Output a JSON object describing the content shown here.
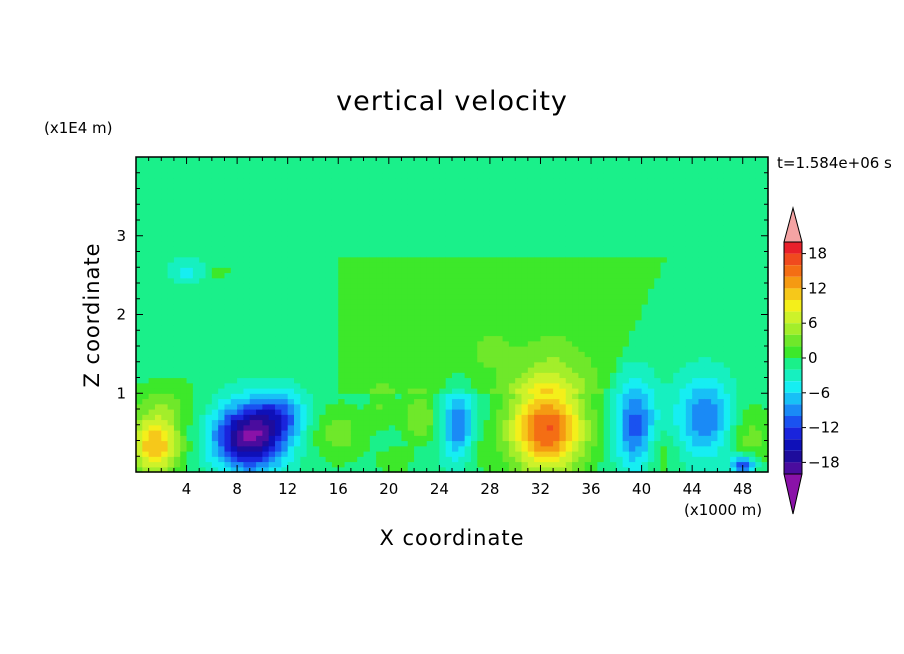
{
  "chart_data": {
    "type": "heatmap",
    "title": "vertical velocity",
    "xlabel": "X coordinate",
    "ylabel": "Z coordinate",
    "x_unit": "(x1000 m)",
    "y_unit": "(x1E4 m)",
    "time_label": "t=1.584e+06 s",
    "xlim": [
      0,
      50
    ],
    "ylim": [
      0,
      4
    ],
    "x_ticks": [
      "4",
      "8",
      "12",
      "16",
      "20",
      "24",
      "28",
      "32",
      "36",
      "40",
      "44",
      "48"
    ],
    "y_ticks": [
      "1",
      "2",
      "3"
    ],
    "colorbar": {
      "ticks": [
        "18",
        "12",
        "6",
        "0",
        "-6",
        "-12",
        "-18"
      ],
      "levels": [
        {
          "min": 20,
          "max": null,
          "color": "#f4a3a3"
        },
        {
          "min": 18,
          "max": 20,
          "color": "#e8202a"
        },
        {
          "min": 16,
          "max": 18,
          "color": "#f04a1e"
        },
        {
          "min": 14,
          "max": 16,
          "color": "#f46e14"
        },
        {
          "min": 12,
          "max": 14,
          "color": "#f59a12"
        },
        {
          "min": 10,
          "max": 12,
          "color": "#f6c81a"
        },
        {
          "min": 8,
          "max": 10,
          "color": "#f4ef1a"
        },
        {
          "min": 6,
          "max": 8,
          "color": "#cdf22a"
        },
        {
          "min": 4,
          "max": 6,
          "color": "#a3ee2a"
        },
        {
          "min": 2,
          "max": 4,
          "color": "#6fe82a"
        },
        {
          "min": 0,
          "max": 2,
          "color": "#3de82a"
        },
        {
          "min": -2,
          "max": 0,
          "color": "#1af08a"
        },
        {
          "min": -4,
          "max": -2,
          "color": "#16f0c0"
        },
        {
          "min": -6,
          "max": -4,
          "color": "#16eef2"
        },
        {
          "min": -8,
          "max": -6,
          "color": "#18c0f6"
        },
        {
          "min": -10,
          "max": -8,
          "color": "#1a8af6"
        },
        {
          "min": -12,
          "max": -10,
          "color": "#1a52f0"
        },
        {
          "min": -14,
          "max": -12,
          "color": "#1a24dc"
        },
        {
          "min": -16,
          "max": -14,
          "color": "#0e10b8"
        },
        {
          "min": -18,
          "max": -16,
          "color": "#1e0c9c"
        },
        {
          "min": -20,
          "max": -18,
          "color": "#4a0c9e"
        },
        {
          "min": null,
          "max": -20,
          "color": "#8a12a8"
        }
      ]
    },
    "field": {
      "background": -1,
      "features": [
        {
          "x": 1.5,
          "z": 0.35,
          "sx": 2.0,
          "sz": 0.38,
          "amp": 13
        },
        {
          "x": 2.5,
          "z": 0.9,
          "sx": 2.5,
          "sz": 0.3,
          "amp": 3
        },
        {
          "x": 9.0,
          "z": 0.45,
          "sx": 2.8,
          "sz": 0.42,
          "amp": -19
        },
        {
          "x": 11.5,
          "z": 0.75,
          "sx": 2.0,
          "sz": 0.3,
          "amp": -7
        },
        {
          "x": 16.0,
          "z": 0.5,
          "sx": 2.2,
          "sz": 0.35,
          "amp": 4
        },
        {
          "x": 19.5,
          "z": 0.85,
          "sx": 1.0,
          "sz": 0.25,
          "amp": 3
        },
        {
          "x": 20.5,
          "z": 0.15,
          "sx": 1.2,
          "sz": 0.15,
          "amp": 3
        },
        {
          "x": 22.5,
          "z": 0.7,
          "sx": 1.4,
          "sz": 0.3,
          "amp": 5
        },
        {
          "x": 25.5,
          "z": 0.6,
          "sx": 1.3,
          "sz": 0.45,
          "amp": -9
        },
        {
          "x": 27.0,
          "z": 0.25,
          "sx": 1.2,
          "sz": 0.25,
          "amp": 2
        },
        {
          "x": 32.5,
          "z": 0.55,
          "sx": 3.0,
          "sz": 0.55,
          "amp": 17
        },
        {
          "x": 33.0,
          "z": 1.3,
          "sx": 2.8,
          "sz": 0.45,
          "amp": 2
        },
        {
          "x": 39.5,
          "z": 0.6,
          "sx": 1.6,
          "sz": 0.55,
          "amp": -10
        },
        {
          "x": 41.5,
          "z": 0.25,
          "sx": 1.2,
          "sz": 0.3,
          "amp": 3
        },
        {
          "x": 45.0,
          "z": 0.7,
          "sx": 2.2,
          "sz": 0.5,
          "amp": -9
        },
        {
          "x": 48.5,
          "z": 0.45,
          "sx": 1.8,
          "sz": 0.4,
          "amp": 4
        },
        {
          "x": 48.0,
          "z": 0.1,
          "sx": 1.0,
          "sz": 0.12,
          "amp": -12
        },
        {
          "x": 4.0,
          "z": 2.55,
          "sx": 1.4,
          "sz": 0.15,
          "amp": -4
        },
        {
          "x": 6.5,
          "z": 2.55,
          "sx": 1.0,
          "sz": 0.1,
          "amp": 2
        },
        {
          "x": 28.0,
          "z": 1.55,
          "sx": 1.5,
          "sz": 0.2,
          "amp": 2
        }
      ],
      "plateau": {
        "z_bottom": 1.0,
        "z_top": 2.75,
        "x_left": 16.0,
        "x_left_top": 16.0,
        "x_right_bottom": 37.0,
        "x_right_top": 42.0,
        "value": 1
      }
    }
  }
}
